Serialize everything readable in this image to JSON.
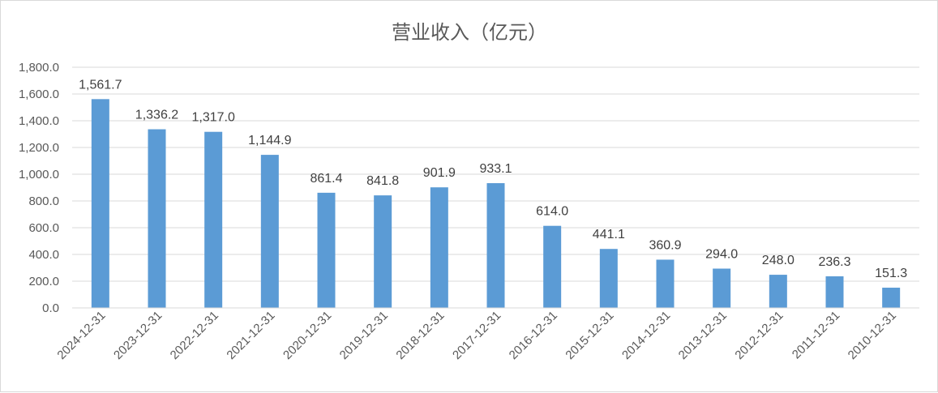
{
  "chart_data": {
    "type": "bar",
    "title": "营业收入（亿元）",
    "categories": [
      "2024-12-31",
      "2023-12-31",
      "2022-12-31",
      "2021-12-31",
      "2020-12-31",
      "2019-12-31",
      "2018-12-31",
      "2017-12-31",
      "2016-12-31",
      "2015-12-31",
      "2014-12-31",
      "2013-12-31",
      "2012-12-31",
      "2011-12-31",
      "2010-12-31"
    ],
    "values": [
      1561.7,
      1336.2,
      1317.0,
      1144.9,
      861.4,
      841.8,
      901.9,
      933.1,
      614.0,
      441.1,
      360.9,
      294.0,
      248.0,
      236.3,
      151.3
    ],
    "value_labels": [
      "1,561.7",
      "1,336.2",
      "1,317.0",
      "1,144.9",
      "861.4",
      "841.8",
      "901.9",
      "933.1",
      "614.0",
      "441.1",
      "360.9",
      "294.0",
      "248.0",
      "236.3",
      "151.3"
    ],
    "y_ticks": [
      "0.0",
      "200.0",
      "400.0",
      "600.0",
      "800.0",
      "1,000.0",
      "1,200.0",
      "1,400.0",
      "1,600.0",
      "1,800.0"
    ],
    "ylim": [
      0,
      1800
    ],
    "xlabel": "",
    "ylabel": "",
    "grid": true,
    "legend": "none",
    "bar_color": "#5b9bd5"
  }
}
